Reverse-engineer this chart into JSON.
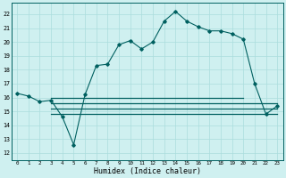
{
  "xlabel": "Humidex (Indice chaleur)",
  "bg_color": "#cff0f0",
  "grid_color": "#aadddd",
  "line_color": "#006060",
  "x_ticks": [
    0,
    1,
    2,
    3,
    4,
    5,
    6,
    7,
    8,
    9,
    10,
    11,
    12,
    13,
    14,
    15,
    16,
    17,
    18,
    19,
    20,
    21,
    22,
    23
  ],
  "ylim": [
    11.5,
    22.8
  ],
  "xlim": [
    -0.5,
    23.5
  ],
  "yticks": [
    12,
    13,
    14,
    15,
    16,
    17,
    18,
    19,
    20,
    21,
    22
  ],
  "main_line": [
    16.3,
    16.1,
    15.7,
    15.8,
    14.6,
    12.6,
    16.2,
    18.3,
    18.4,
    19.8,
    20.1,
    19.5,
    20.0,
    21.5,
    22.2,
    21.5,
    21.1,
    20.8,
    20.8,
    20.6,
    20.2,
    17.0,
    14.8,
    15.4
  ],
  "ref_line1_y": 16.0,
  "ref_line1_x_start": 5,
  "ref_line1_x_end": 20,
  "ref_line2_y": 15.3,
  "ref_line2_x_start": 5,
  "ref_line2_x_end": 23,
  "ref_line3_y": 15.0,
  "ref_line3_x_start": 5,
  "ref_line3_x_end": 23,
  "ref_line4_y": 14.8,
  "ref_line4_x_start": 5,
  "ref_line4_x_end": 23,
  "ref_line5_y": 14.5,
  "ref_line5_x_start": 5,
  "ref_line5_x_end": 23
}
